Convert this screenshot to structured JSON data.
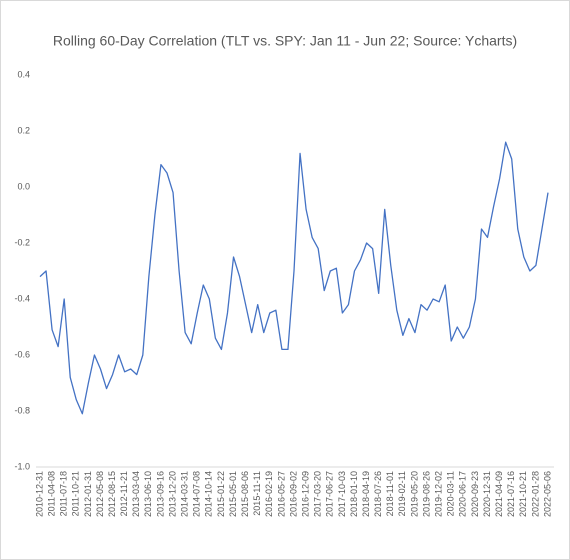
{
  "chart_data": {
    "type": "line",
    "title": "Rolling 60-Day Correlation (TLT vs. SPY: Jan 11 - Jun 22; Source: Ycharts)",
    "categories": [
      "2010-12-31",
      null,
      "2011-04-08",
      null,
      "2011-07-18",
      null,
      "2011-10-21",
      null,
      "2012-01-31",
      null,
      "2012-05-08",
      null,
      "2012-08-15",
      null,
      "2012-11-21",
      null,
      "2013-03-04",
      null,
      "2013-06-10",
      null,
      "2013-09-16",
      null,
      "2013-12-20",
      null,
      "2014-03-31",
      null,
      "2014-07-08",
      null,
      "2014-10-14",
      null,
      "2015-01-22",
      null,
      "2015-05-01",
      null,
      "2015-08-06",
      null,
      "2015-11-11",
      null,
      "2016-02-19",
      null,
      "2016-05-27",
      null,
      "2016-09-02",
      null,
      "2016-12-09",
      null,
      "2017-03-20",
      null,
      "2017-06-27",
      null,
      "2017-10-03",
      null,
      "2018-01-10",
      null,
      "2018-04-19",
      null,
      "2018-07-26",
      null,
      "2018-11-01",
      null,
      "2019-02-11",
      null,
      "2019-05-20",
      null,
      "2019-08-26",
      null,
      "2019-12-02",
      null,
      "2020-03-11",
      null,
      "2020-06-17",
      null,
      "2020-09-23",
      null,
      "2020-12-31",
      null,
      "2021-04-09",
      null,
      "2021-07-16",
      null,
      "2021-10-21",
      null,
      "2022-01-28",
      null,
      "2022-05-06"
    ],
    "series": [
      {
        "name": "Correlation",
        "color": "#4472c4",
        "values": [
          -0.32,
          -0.3,
          -0.51,
          -0.57,
          -0.4,
          -0.68,
          -0.76,
          -0.81,
          -0.7,
          -0.6,
          -0.65,
          -0.72,
          -0.67,
          -0.6,
          -0.66,
          -0.65,
          -0.67,
          -0.6,
          -0.32,
          -0.1,
          0.08,
          0.05,
          -0.02,
          -0.3,
          -0.52,
          -0.56,
          -0.45,
          -0.35,
          -0.4,
          -0.54,
          -0.58,
          -0.45,
          -0.25,
          -0.32,
          -0.42,
          -0.52,
          -0.42,
          -0.52,
          -0.45,
          -0.44,
          -0.58,
          -0.58,
          -0.3,
          0.12,
          -0.08,
          -0.18,
          -0.22,
          -0.37,
          -0.3,
          -0.29,
          -0.45,
          -0.42,
          -0.3,
          -0.26,
          -0.2,
          -0.22,
          -0.38,
          -0.08,
          -0.28,
          -0.44,
          -0.53,
          -0.47,
          -0.52,
          -0.42,
          -0.44,
          -0.4,
          -0.41,
          -0.35,
          -0.55,
          -0.5,
          -0.54,
          -0.5,
          -0.4,
          -0.15,
          -0.18,
          -0.07,
          0.03,
          0.16,
          0.1,
          -0.15,
          -0.25,
          -0.3,
          -0.28,
          -0.15,
          -0.02
        ]
      }
    ],
    "ylim": [
      -1,
      0.4
    ],
    "yticks": [
      {
        "value": -1,
        "label": "-1.0"
      },
      -0.8,
      -0.6,
      -0.4,
      -0.2,
      {
        "value": 0,
        "label": "0.0"
      },
      0.2,
      0.4
    ],
    "grid": false
  }
}
